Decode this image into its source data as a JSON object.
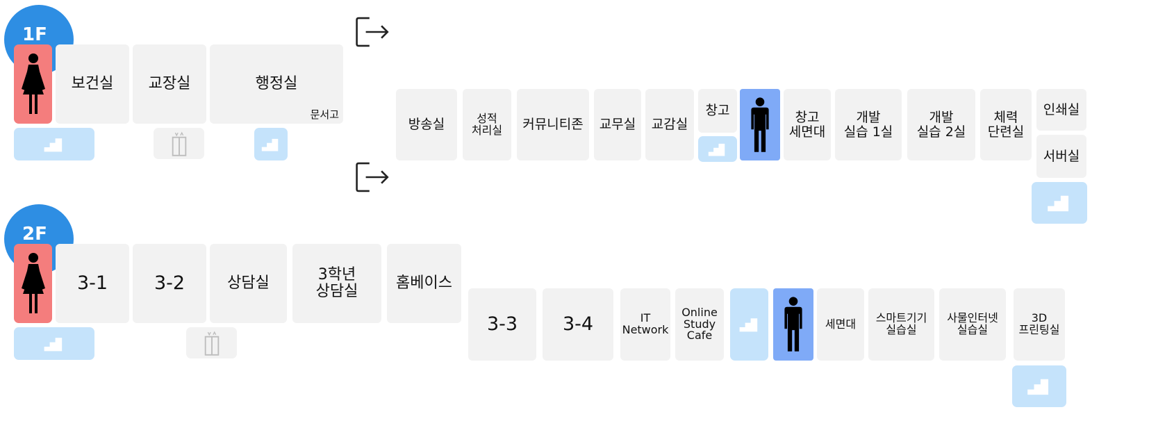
{
  "floors": [
    {
      "label": "1F"
    },
    {
      "label": "2F"
    }
  ],
  "rooms_1f": {
    "health": "보건실",
    "principal": "교장실",
    "admin": "행정실",
    "archive": "문서고",
    "broadcast": "방송실",
    "grades": "성적\n처리실",
    "community": "커뮤니티존",
    "teachers": "교무실",
    "vice_principal": "교감실",
    "storage": "창고",
    "storage_wash": "창고\n세면대",
    "dev_lab1": "개발\n실습 1실",
    "dev_lab2": "개발\n실습 2실",
    "fitness": "체력\n단련실",
    "print": "인쇄실",
    "server": "서버실"
  },
  "rooms_2f": {
    "c31": "3-1",
    "c32": "3-2",
    "counsel": "상담실",
    "g3_counsel": "3학년\n상담실",
    "homebase": "홈베이스",
    "c33": "3-3",
    "c34": "3-4",
    "it": "IT\nNetwork",
    "online": "Online\nStudy\nCafe",
    "wash": "세면대",
    "smart": "스마트기기\n실습실",
    "iot": "사물인터넷\n실습실",
    "print3d": "3D\n프린팅실"
  },
  "icons": {
    "female": "female-restroom-icon",
    "male": "male-restroom-icon",
    "stairs": "stairs-icon",
    "elevator": "elevator-icon",
    "exit": "exit-icon"
  },
  "colors": {
    "badge": "#2e8ee3",
    "female": "#f47d7d",
    "male": "#7faaf7",
    "stairs": "#c5e3fb",
    "room": "#f2f2f2"
  }
}
